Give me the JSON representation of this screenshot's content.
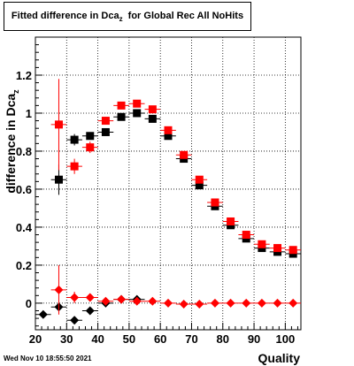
{
  "title": {
    "main": "Fitted difference in Dca",
    "sub": "z",
    "rest": "  for Global Rec All NoHits"
  },
  "footer_text": "Wed Nov 10 18:55:50 2021",
  "chart_data": {
    "type": "scatter",
    "title": "Fitted difference in Dcaz  for Global Rec All NoHits",
    "xlabel": "Quality",
    "ylabel": "difference in Dca",
    "ylabel_sub": "z",
    "xlim": [
      20,
      105
    ],
    "ylim": [
      -0.14,
      1.4
    ],
    "xticks": [
      20,
      30,
      40,
      50,
      60,
      70,
      80,
      90,
      100
    ],
    "yticks": [
      0,
      0.2,
      0.4,
      0.6,
      0.8,
      1,
      1.2
    ],
    "ytick_labels": [
      "0",
      "0.2",
      "0.4",
      "0.6",
      "0.8",
      "1",
      "1.2"
    ],
    "grid": true,
    "colors": {
      "black": "#000000",
      "red": "#ff0000"
    },
    "series": [
      {
        "marker": "square",
        "color": "#000000",
        "x": [
          27.5,
          32.5,
          37.5,
          42.5,
          47.5,
          52.5,
          57.5,
          62.5,
          67.5,
          72.5,
          77.5,
          82.5,
          87.5,
          92.5,
          97.5,
          102.5
        ],
        "y": [
          0.65,
          0.86,
          0.88,
          0.9,
          0.98,
          1.0,
          0.97,
          0.88,
          0.76,
          0.62,
          0.51,
          0.41,
          0.34,
          0.29,
          0.27,
          0.26
        ],
        "err": [
          0.08,
          0.03,
          0.02,
          0.015,
          0.01,
          0.01,
          0.01,
          0.01,
          0.01,
          0.01,
          0.01,
          0.01,
          0.01,
          0.01,
          0.01,
          0.01
        ]
      },
      {
        "marker": "square",
        "color": "#ff0000",
        "x": [
          27.5,
          32.5,
          37.5,
          42.5,
          47.5,
          52.5,
          57.5,
          62.5,
          67.5,
          72.5,
          77.5,
          82.5,
          87.5,
          92.5,
          97.5,
          102.5
        ],
        "y": [
          0.94,
          0.72,
          0.82,
          0.96,
          1.04,
          1.05,
          1.02,
          0.91,
          0.78,
          0.65,
          0.53,
          0.43,
          0.36,
          0.31,
          0.29,
          0.28
        ],
        "err": [
          0.24,
          0.04,
          0.03,
          0.02,
          0.015,
          0.01,
          0.01,
          0.01,
          0.01,
          0.01,
          0.01,
          0.01,
          0.01,
          0.01,
          0.01,
          0.01
        ]
      },
      {
        "marker": "diamond",
        "color": "#000000",
        "x": [
          22.5,
          27.5,
          32.5,
          37.5,
          42.5,
          47.5,
          52.5
        ],
        "y": [
          -0.06,
          -0.02,
          -0.09,
          -0.04,
          0.0,
          0.02,
          0.02
        ],
        "err": [
          0.0,
          0.0,
          0.02,
          0.01,
          0.01,
          0.0,
          0.01
        ]
      },
      {
        "marker": "diamond",
        "color": "#ff0000",
        "x": [
          27.5,
          32.5,
          37.5,
          42.5,
          47.5,
          52.5,
          57.5,
          62.5,
          67.5,
          72.5,
          77.5,
          82.5,
          87.5,
          92.5,
          97.5,
          102.5
        ],
        "y": [
          0.07,
          0.03,
          0.03,
          0.01,
          0.02,
          0.01,
          0.01,
          0.0,
          -0.005,
          -0.005,
          0.0,
          0.0,
          0.0,
          0.0,
          0.0,
          0.0
        ],
        "err": [
          0.13,
          0.03,
          0.02,
          0.01,
          0.01,
          0.005,
          0.005,
          0.005,
          0.005,
          0.005,
          0.005,
          0.005,
          0.005,
          0.005,
          0.005,
          0.005
        ]
      }
    ]
  }
}
